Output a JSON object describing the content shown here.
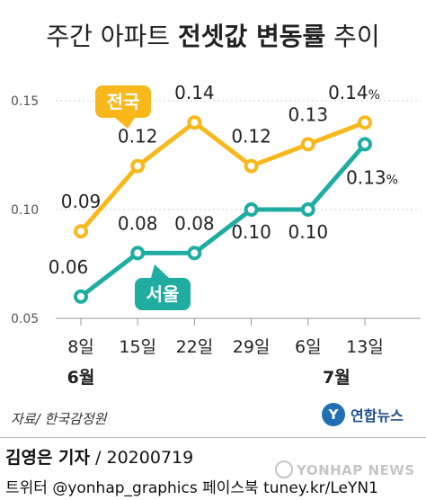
{
  "title": {
    "light_a": "주간 아파트 ",
    "bold": "전셋값 변동률",
    "light_b": " 추이"
  },
  "chart_data": {
    "type": "line",
    "title": "주간 아파트 전셋값 변동률 추이",
    "categories": [
      "8일",
      "15일",
      "22일",
      "29일",
      "6일",
      "13일"
    ],
    "month_labels": [
      {
        "label": "6월",
        "index": 0
      },
      {
        "label": "7월",
        "index": 4.5
      }
    ],
    "yticks": [
      "0.05",
      "0.10",
      "0.15"
    ],
    "ylim": [
      0.05,
      0.15
    ],
    "grid": true,
    "unit": "%",
    "series": [
      {
        "name": "전국",
        "color": "#f8b81c",
        "values": [
          0.09,
          0.12,
          0.14,
          0.12,
          0.13,
          0.14
        ],
        "labels": [
          "0.09",
          "0.12",
          "0.14",
          "0.12",
          "0.13",
          "0.14"
        ]
      },
      {
        "name": "서울",
        "color": "#1fada2",
        "values": [
          0.06,
          0.08,
          0.08,
          0.1,
          0.1,
          0.13
        ],
        "labels": [
          "0.06",
          "0.08",
          "0.08",
          "0.10",
          "0.10",
          "0.13"
        ]
      }
    ]
  },
  "source": "자료/ 한국감정원",
  "agency": {
    "logo_glyph": "Y",
    "name": "연합뉴스"
  },
  "byline": {
    "reporter": "김영은 기자",
    "separator": " / ",
    "date": "20200719"
  },
  "social": "트위터 @yonhap_graphics  페이스북 tuney.kr/LeYN1",
  "watermark": "YONHAP NEWS"
}
